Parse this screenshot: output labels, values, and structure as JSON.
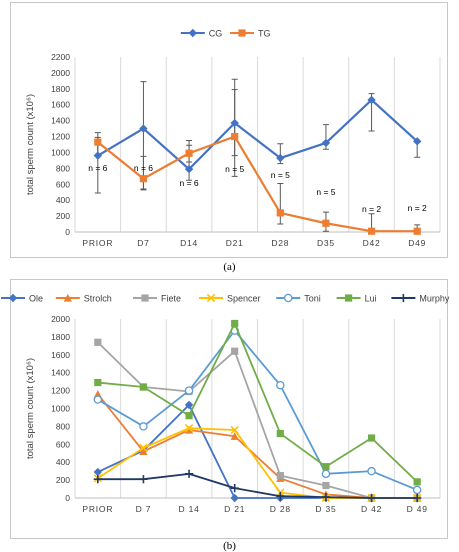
{
  "chart_data": [
    {
      "type": "line",
      "panel_label": "(a)",
      "categories": [
        "PRIOR",
        "D7",
        "D14",
        "D21",
        "D28",
        "D35",
        "D42",
        "D49"
      ],
      "series": [
        {
          "name": "CG",
          "color": "#4472c4",
          "marker": "diamond",
          "values": [
            960,
            1300,
            790,
            1370,
            930,
            1120,
            1660,
            1140
          ],
          "error_low": [
            490,
            540,
            650,
            960,
            860,
            1040,
            1270,
            940
          ],
          "error_high": [
            1250,
            1890,
            1150,
            1920,
            1110,
            1350,
            1740,
            1140
          ]
        },
        {
          "name": "TG",
          "color": "#ed7d31",
          "marker": "square",
          "values": [
            1130,
            670,
            990,
            1200,
            240,
            110,
            10,
            10
          ],
          "error_low": [
            970,
            530,
            880,
            700,
            100,
            10,
            0,
            0
          ],
          "error_high": [
            1190,
            950,
            1090,
            1790,
            610,
            250,
            230,
            90
          ]
        }
      ],
      "annotations": [
        "n = 6",
        "n = 6",
        "n = 6",
        "n = 5",
        "n = 5",
        "n = 5",
        "n = 2",
        "n = 2"
      ],
      "ylabel": "total sperm count (x10⁶)",
      "ylim": [
        0,
        2200
      ],
      "yticks": [
        0,
        200,
        400,
        600,
        800,
        1000,
        1200,
        1400,
        1600,
        1800,
        2000,
        2200
      ],
      "grid": "vertical category lines",
      "legend": "top-center"
    },
    {
      "type": "line",
      "panel_label": "(b)",
      "categories": [
        "PRIOR",
        "D 7",
        "D 14",
        "D 21",
        "D 28",
        "D 35",
        "D 42",
        "D 49"
      ],
      "series": [
        {
          "name": "Ole",
          "color": "#4472c4",
          "marker": "diamond",
          "values": [
            290,
            530,
            1040,
            0,
            0,
            0,
            0,
            0
          ]
        },
        {
          "name": "Strolch",
          "color": "#ed7d31",
          "marker": "triangle",
          "values": [
            1160,
            520,
            760,
            690,
            220,
            40,
            0,
            0
          ]
        },
        {
          "name": "Fiete",
          "color": "#a5a5a5",
          "marker": "square",
          "values": [
            1740,
            1240,
            1190,
            1640,
            250,
            140,
            0,
            0
          ]
        },
        {
          "name": "Spencer",
          "color": "#ffc000",
          "marker": "x",
          "values": [
            220,
            560,
            780,
            760,
            60,
            0,
            0,
            0
          ]
        },
        {
          "name": "Toni",
          "color": "#5b9bd5",
          "marker": "circle",
          "values": [
            1100,
            800,
            1200,
            1870,
            1260,
            270,
            300,
            90
          ]
        },
        {
          "name": "Lui",
          "color": "#70ad47",
          "marker": "square",
          "values": [
            1290,
            1240,
            920,
            1950,
            720,
            350,
            670,
            180
          ]
        },
        {
          "name": "Murphy",
          "color": "#1f3864",
          "marker": "plus",
          "values": [
            210,
            210,
            270,
            110,
            20,
            10,
            0,
            0
          ]
        }
      ],
      "ylabel": "total sperm count (x10⁶)",
      "ylim": [
        0,
        2000
      ],
      "yticks": [
        0,
        200,
        400,
        600,
        800,
        1000,
        1200,
        1400,
        1600,
        1800,
        2000
      ],
      "grid": "vertical category lines",
      "legend": "top"
    }
  ]
}
